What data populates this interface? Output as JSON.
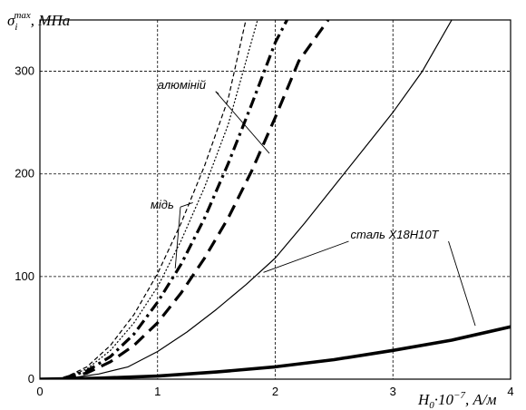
{
  "chart_data": {
    "type": "line",
    "ylabel": {
      "symbol": "σ",
      "sub": "i",
      "sup": "max",
      "unit": ", МПа"
    },
    "xlabel": {
      "symbol": "H",
      "sub": "0",
      "mid": "·10",
      "sup": "−7",
      "unit": ", А/м"
    },
    "xlim": [
      0,
      4
    ],
    "ylim": [
      0,
      350
    ],
    "x_ticks": [
      "0",
      "1",
      "2",
      "3",
      "4"
    ],
    "y_ticks": [
      "0",
      "100",
      "200",
      "300"
    ],
    "grid": true,
    "series": [
      {
        "style": "dashed-thin",
        "points": [
          [
            0.2,
            1
          ],
          [
            0.4,
            12
          ],
          [
            0.6,
            33
          ],
          [
            0.8,
            63
          ],
          [
            1.0,
            103
          ],
          [
            1.2,
            152
          ],
          [
            1.4,
            208
          ],
          [
            1.6,
            273
          ],
          [
            1.75,
            350
          ]
        ]
      },
      {
        "style": "dotted-thin",
        "points": [
          [
            0.2,
            1
          ],
          [
            0.4,
            10
          ],
          [
            0.6,
            28
          ],
          [
            0.8,
            55
          ],
          [
            1.0,
            90
          ],
          [
            1.2,
            135
          ],
          [
            1.4,
            187
          ],
          [
            1.6,
            248
          ],
          [
            1.85,
            350
          ]
        ]
      },
      {
        "style": "dashdot-thick",
        "points": [
          [
            0.2,
            1
          ],
          [
            0.4,
            8
          ],
          [
            0.6,
            22
          ],
          [
            0.8,
            44
          ],
          [
            1.0,
            75
          ],
          [
            1.2,
            112
          ],
          [
            1.4,
            157
          ],
          [
            1.6,
            210
          ],
          [
            1.8,
            268
          ],
          [
            2.0,
            328
          ],
          [
            2.1,
            350
          ]
        ]
      },
      {
        "style": "dashed-thick",
        "points": [
          [
            0.2,
            1
          ],
          [
            0.4,
            6
          ],
          [
            0.6,
            17
          ],
          [
            0.8,
            33
          ],
          [
            1.0,
            55
          ],
          [
            1.2,
            84
          ],
          [
            1.4,
            118
          ],
          [
            1.6,
            157
          ],
          [
            1.8,
            203
          ],
          [
            2.0,
            255
          ],
          [
            2.2,
            310
          ],
          [
            2.45,
            350
          ]
        ]
      },
      {
        "style": "solid-thin",
        "points": [
          [
            0.0,
            0
          ],
          [
            0.25,
            1
          ],
          [
            0.5,
            5
          ],
          [
            0.75,
            12
          ],
          [
            1.0,
            27
          ],
          [
            1.25,
            46
          ],
          [
            1.5,
            68
          ],
          [
            1.75,
            92
          ],
          [
            2.0,
            118
          ],
          [
            2.25,
            152
          ],
          [
            2.5,
            188
          ],
          [
            2.75,
            224
          ],
          [
            3.0,
            260
          ],
          [
            3.25,
            300
          ],
          [
            3.5,
            350
          ]
        ]
      },
      {
        "style": "solid-thick",
        "points": [
          [
            0.0,
            0
          ],
          [
            0.5,
            1
          ],
          [
            1.0,
            3
          ],
          [
            1.5,
            7
          ],
          [
            2.0,
            12
          ],
          [
            2.5,
            19
          ],
          [
            3.0,
            28
          ],
          [
            3.5,
            38
          ],
          [
            4.0,
            51
          ]
        ]
      }
    ],
    "annotations": [
      {
        "text": "алюміній",
        "x": 1.0,
        "y": 283,
        "pointers": [
          [
            1.52,
            278
          ],
          [
            1.95,
            220
          ]
        ]
      },
      {
        "text": "мідь",
        "x": 0.94,
        "y": 166,
        "pointers": [
          [
            1.3,
            172
          ],
          [
            1.15,
            108
          ]
        ]
      },
      {
        "text": "сталь Х18Н10Т",
        "x": 2.64,
        "y": 137,
        "pointers": [
          [
            1.9,
            104
          ],
          [
            3.7,
            52
          ]
        ]
      }
    ]
  }
}
